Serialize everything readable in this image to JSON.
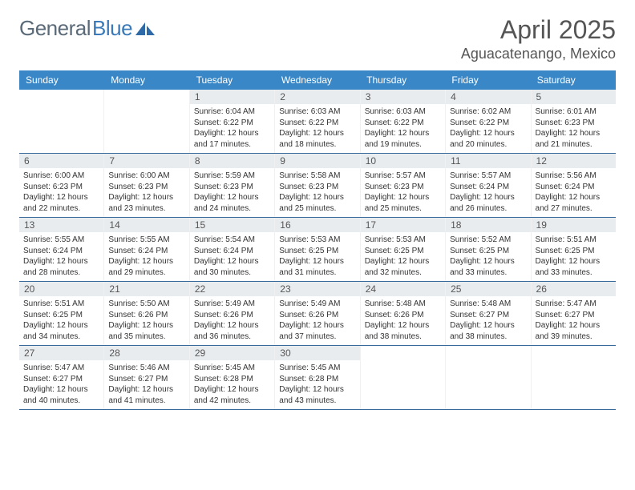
{
  "brand": {
    "part1": "General",
    "part2": "Blue"
  },
  "title": "April 2025",
  "location": "Aguacatenango, Mexico",
  "colors": {
    "header_bg": "#3a87c7",
    "header_text": "#ffffff",
    "daynum_bg": "#e9ecef",
    "week_border": "#3a6a9a",
    "text": "#333333",
    "logo_gray": "#5a6a78",
    "logo_blue": "#3a7ab8"
  },
  "typography": {
    "title_fontsize": 32,
    "location_fontsize": 18,
    "dow_fontsize": 12,
    "daynum_fontsize": 12,
    "body_fontsize": 10
  },
  "days_of_week": [
    "Sunday",
    "Monday",
    "Tuesday",
    "Wednesday",
    "Thursday",
    "Friday",
    "Saturday"
  ],
  "weeks": [
    [
      null,
      null,
      {
        "n": "1",
        "sr": "Sunrise: 6:04 AM",
        "ss": "Sunset: 6:22 PM",
        "dl": "Daylight: 12 hours and 17 minutes."
      },
      {
        "n": "2",
        "sr": "Sunrise: 6:03 AM",
        "ss": "Sunset: 6:22 PM",
        "dl": "Daylight: 12 hours and 18 minutes."
      },
      {
        "n": "3",
        "sr": "Sunrise: 6:03 AM",
        "ss": "Sunset: 6:22 PM",
        "dl": "Daylight: 12 hours and 19 minutes."
      },
      {
        "n": "4",
        "sr": "Sunrise: 6:02 AM",
        "ss": "Sunset: 6:22 PM",
        "dl": "Daylight: 12 hours and 20 minutes."
      },
      {
        "n": "5",
        "sr": "Sunrise: 6:01 AM",
        "ss": "Sunset: 6:23 PM",
        "dl": "Daylight: 12 hours and 21 minutes."
      }
    ],
    [
      {
        "n": "6",
        "sr": "Sunrise: 6:00 AM",
        "ss": "Sunset: 6:23 PM",
        "dl": "Daylight: 12 hours and 22 minutes."
      },
      {
        "n": "7",
        "sr": "Sunrise: 6:00 AM",
        "ss": "Sunset: 6:23 PM",
        "dl": "Daylight: 12 hours and 23 minutes."
      },
      {
        "n": "8",
        "sr": "Sunrise: 5:59 AM",
        "ss": "Sunset: 6:23 PM",
        "dl": "Daylight: 12 hours and 24 minutes."
      },
      {
        "n": "9",
        "sr": "Sunrise: 5:58 AM",
        "ss": "Sunset: 6:23 PM",
        "dl": "Daylight: 12 hours and 25 minutes."
      },
      {
        "n": "10",
        "sr": "Sunrise: 5:57 AM",
        "ss": "Sunset: 6:23 PM",
        "dl": "Daylight: 12 hours and 25 minutes."
      },
      {
        "n": "11",
        "sr": "Sunrise: 5:57 AM",
        "ss": "Sunset: 6:24 PM",
        "dl": "Daylight: 12 hours and 26 minutes."
      },
      {
        "n": "12",
        "sr": "Sunrise: 5:56 AM",
        "ss": "Sunset: 6:24 PM",
        "dl": "Daylight: 12 hours and 27 minutes."
      }
    ],
    [
      {
        "n": "13",
        "sr": "Sunrise: 5:55 AM",
        "ss": "Sunset: 6:24 PM",
        "dl": "Daylight: 12 hours and 28 minutes."
      },
      {
        "n": "14",
        "sr": "Sunrise: 5:55 AM",
        "ss": "Sunset: 6:24 PM",
        "dl": "Daylight: 12 hours and 29 minutes."
      },
      {
        "n": "15",
        "sr": "Sunrise: 5:54 AM",
        "ss": "Sunset: 6:24 PM",
        "dl": "Daylight: 12 hours and 30 minutes."
      },
      {
        "n": "16",
        "sr": "Sunrise: 5:53 AM",
        "ss": "Sunset: 6:25 PM",
        "dl": "Daylight: 12 hours and 31 minutes."
      },
      {
        "n": "17",
        "sr": "Sunrise: 5:53 AM",
        "ss": "Sunset: 6:25 PM",
        "dl": "Daylight: 12 hours and 32 minutes."
      },
      {
        "n": "18",
        "sr": "Sunrise: 5:52 AM",
        "ss": "Sunset: 6:25 PM",
        "dl": "Daylight: 12 hours and 33 minutes."
      },
      {
        "n": "19",
        "sr": "Sunrise: 5:51 AM",
        "ss": "Sunset: 6:25 PM",
        "dl": "Daylight: 12 hours and 33 minutes."
      }
    ],
    [
      {
        "n": "20",
        "sr": "Sunrise: 5:51 AM",
        "ss": "Sunset: 6:25 PM",
        "dl": "Daylight: 12 hours and 34 minutes."
      },
      {
        "n": "21",
        "sr": "Sunrise: 5:50 AM",
        "ss": "Sunset: 6:26 PM",
        "dl": "Daylight: 12 hours and 35 minutes."
      },
      {
        "n": "22",
        "sr": "Sunrise: 5:49 AM",
        "ss": "Sunset: 6:26 PM",
        "dl": "Daylight: 12 hours and 36 minutes."
      },
      {
        "n": "23",
        "sr": "Sunrise: 5:49 AM",
        "ss": "Sunset: 6:26 PM",
        "dl": "Daylight: 12 hours and 37 minutes."
      },
      {
        "n": "24",
        "sr": "Sunrise: 5:48 AM",
        "ss": "Sunset: 6:26 PM",
        "dl": "Daylight: 12 hours and 38 minutes."
      },
      {
        "n": "25",
        "sr": "Sunrise: 5:48 AM",
        "ss": "Sunset: 6:27 PM",
        "dl": "Daylight: 12 hours and 38 minutes."
      },
      {
        "n": "26",
        "sr": "Sunrise: 5:47 AM",
        "ss": "Sunset: 6:27 PM",
        "dl": "Daylight: 12 hours and 39 minutes."
      }
    ],
    [
      {
        "n": "27",
        "sr": "Sunrise: 5:47 AM",
        "ss": "Sunset: 6:27 PM",
        "dl": "Daylight: 12 hours and 40 minutes."
      },
      {
        "n": "28",
        "sr": "Sunrise: 5:46 AM",
        "ss": "Sunset: 6:27 PM",
        "dl": "Daylight: 12 hours and 41 minutes."
      },
      {
        "n": "29",
        "sr": "Sunrise: 5:45 AM",
        "ss": "Sunset: 6:28 PM",
        "dl": "Daylight: 12 hours and 42 minutes."
      },
      {
        "n": "30",
        "sr": "Sunrise: 5:45 AM",
        "ss": "Sunset: 6:28 PM",
        "dl": "Daylight: 12 hours and 43 minutes."
      },
      null,
      null,
      null
    ]
  ]
}
